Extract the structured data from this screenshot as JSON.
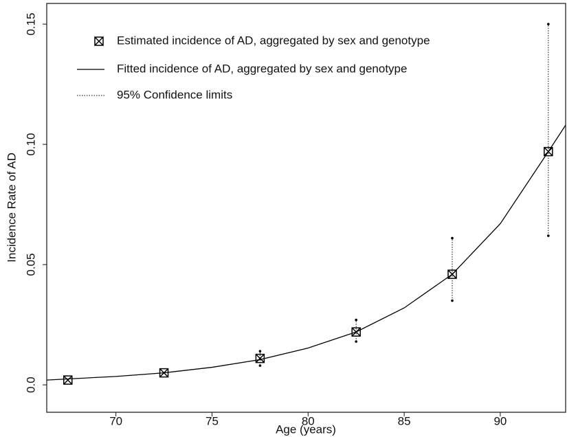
{
  "chart_data": {
    "type": "scatter",
    "xlabel": "Age (years)",
    "ylabel": "Incidence Rate of AD",
    "xlim": [
      66.4,
      93.4
    ],
    "xticks": [
      70,
      75,
      80,
      85,
      90
    ],
    "ylim": [
      -0.0114,
      0.1586
    ],
    "yticks": [
      {
        "value": 0,
        "label": "0.0"
      },
      0.05,
      {
        "value": 0.1,
        "label": "0.10"
      },
      0.15
    ],
    "color": "#000000",
    "series": [
      {
        "name": "Estimated incidence of AD, aggregated by sex and genotype",
        "x": [
          67.5,
          72.5,
          77.5,
          82.5,
          87.5,
          92.5
        ],
        "values": [
          0.002,
          0.005,
          0.011,
          0.022,
          0.046,
          0.097
        ],
        "ci_low": [
          null,
          null,
          0.008,
          0.018,
          0.035,
          0.062
        ],
        "ci_high": [
          null,
          null,
          0.014,
          0.027,
          0.061,
          0.15
        ]
      },
      {
        "name": "Fitted incidence of AD, aggregated by sex and genotype",
        "x": [
          66.4,
          70,
          72.5,
          75,
          77.5,
          80,
          82.5,
          85,
          87.5,
          90,
          92.5,
          93.4
        ],
        "values": [
          0.002,
          0.0035,
          0.005,
          0.0073,
          0.0105,
          0.0153,
          0.022,
          0.032,
          0.046,
          0.067,
          0.097,
          0.108
        ]
      }
    ],
    "confidence_label": "95% Confidence limits"
  }
}
